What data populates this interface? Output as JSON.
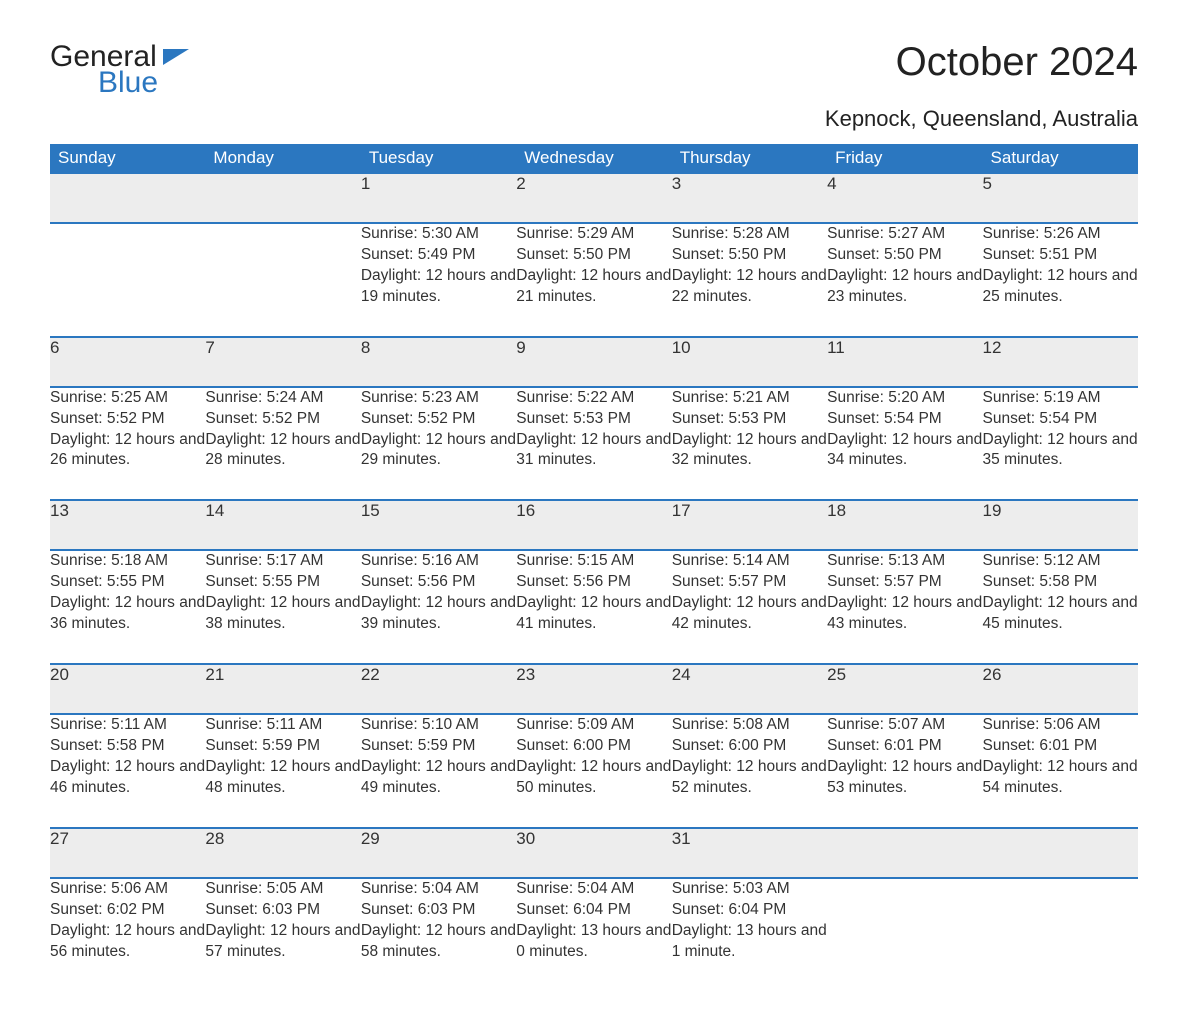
{
  "brand": {
    "word1": "General",
    "word2": "Blue"
  },
  "title": "October 2024",
  "location": "Kepnock, Queensland, Australia",
  "colors": {
    "header_bg": "#2b77c0",
    "header_text": "#ffffff",
    "daynum_bg": "#ededed",
    "border": "#2b77c0",
    "body_text": "#333333",
    "page_bg": "#ffffff",
    "brand_blue": "#2b77c0"
  },
  "typography": {
    "title_fontsize": 40,
    "subtitle_fontsize": 22,
    "header_fontsize": 17,
    "daynum_fontsize": 17,
    "cell_fontsize": 15.5
  },
  "layout": {
    "columns": 7,
    "weeks": 5,
    "start_weekday_index": 2
  },
  "weekdays": [
    "Sunday",
    "Monday",
    "Tuesday",
    "Wednesday",
    "Thursday",
    "Friday",
    "Saturday"
  ],
  "labels": {
    "sunrise": "Sunrise: ",
    "sunset": "Sunset: ",
    "daylight": "Daylight: "
  },
  "days": [
    {
      "n": 1,
      "sunrise": "5:30 AM",
      "sunset": "5:49 PM",
      "daylight": "12 hours and 19 minutes."
    },
    {
      "n": 2,
      "sunrise": "5:29 AM",
      "sunset": "5:50 PM",
      "daylight": "12 hours and 21 minutes."
    },
    {
      "n": 3,
      "sunrise": "5:28 AM",
      "sunset": "5:50 PM",
      "daylight": "12 hours and 22 minutes."
    },
    {
      "n": 4,
      "sunrise": "5:27 AM",
      "sunset": "5:50 PM",
      "daylight": "12 hours and 23 minutes."
    },
    {
      "n": 5,
      "sunrise": "5:26 AM",
      "sunset": "5:51 PM",
      "daylight": "12 hours and 25 minutes."
    },
    {
      "n": 6,
      "sunrise": "5:25 AM",
      "sunset": "5:52 PM",
      "daylight": "12 hours and 26 minutes."
    },
    {
      "n": 7,
      "sunrise": "5:24 AM",
      "sunset": "5:52 PM",
      "daylight": "12 hours and 28 minutes."
    },
    {
      "n": 8,
      "sunrise": "5:23 AM",
      "sunset": "5:52 PM",
      "daylight": "12 hours and 29 minutes."
    },
    {
      "n": 9,
      "sunrise": "5:22 AM",
      "sunset": "5:53 PM",
      "daylight": "12 hours and 31 minutes."
    },
    {
      "n": 10,
      "sunrise": "5:21 AM",
      "sunset": "5:53 PM",
      "daylight": "12 hours and 32 minutes."
    },
    {
      "n": 11,
      "sunrise": "5:20 AM",
      "sunset": "5:54 PM",
      "daylight": "12 hours and 34 minutes."
    },
    {
      "n": 12,
      "sunrise": "5:19 AM",
      "sunset": "5:54 PM",
      "daylight": "12 hours and 35 minutes."
    },
    {
      "n": 13,
      "sunrise": "5:18 AM",
      "sunset": "5:55 PM",
      "daylight": "12 hours and 36 minutes."
    },
    {
      "n": 14,
      "sunrise": "5:17 AM",
      "sunset": "5:55 PM",
      "daylight": "12 hours and 38 minutes."
    },
    {
      "n": 15,
      "sunrise": "5:16 AM",
      "sunset": "5:56 PM",
      "daylight": "12 hours and 39 minutes."
    },
    {
      "n": 16,
      "sunrise": "5:15 AM",
      "sunset": "5:56 PM",
      "daylight": "12 hours and 41 minutes."
    },
    {
      "n": 17,
      "sunrise": "5:14 AM",
      "sunset": "5:57 PM",
      "daylight": "12 hours and 42 minutes."
    },
    {
      "n": 18,
      "sunrise": "5:13 AM",
      "sunset": "5:57 PM",
      "daylight": "12 hours and 43 minutes."
    },
    {
      "n": 19,
      "sunrise": "5:12 AM",
      "sunset": "5:58 PM",
      "daylight": "12 hours and 45 minutes."
    },
    {
      "n": 20,
      "sunrise": "5:11 AM",
      "sunset": "5:58 PM",
      "daylight": "12 hours and 46 minutes."
    },
    {
      "n": 21,
      "sunrise": "5:11 AM",
      "sunset": "5:59 PM",
      "daylight": "12 hours and 48 minutes."
    },
    {
      "n": 22,
      "sunrise": "5:10 AM",
      "sunset": "5:59 PM",
      "daylight": "12 hours and 49 minutes."
    },
    {
      "n": 23,
      "sunrise": "5:09 AM",
      "sunset": "6:00 PM",
      "daylight": "12 hours and 50 minutes."
    },
    {
      "n": 24,
      "sunrise": "5:08 AM",
      "sunset": "6:00 PM",
      "daylight": "12 hours and 52 minutes."
    },
    {
      "n": 25,
      "sunrise": "5:07 AM",
      "sunset": "6:01 PM",
      "daylight": "12 hours and 53 minutes."
    },
    {
      "n": 26,
      "sunrise": "5:06 AM",
      "sunset": "6:01 PM",
      "daylight": "12 hours and 54 minutes."
    },
    {
      "n": 27,
      "sunrise": "5:06 AM",
      "sunset": "6:02 PM",
      "daylight": "12 hours and 56 minutes."
    },
    {
      "n": 28,
      "sunrise": "5:05 AM",
      "sunset": "6:03 PM",
      "daylight": "12 hours and 57 minutes."
    },
    {
      "n": 29,
      "sunrise": "5:04 AM",
      "sunset": "6:03 PM",
      "daylight": "12 hours and 58 minutes."
    },
    {
      "n": 30,
      "sunrise": "5:04 AM",
      "sunset": "6:04 PM",
      "daylight": "13 hours and 0 minutes."
    },
    {
      "n": 31,
      "sunrise": "5:03 AM",
      "sunset": "6:04 PM",
      "daylight": "13 hours and 1 minute."
    }
  ]
}
